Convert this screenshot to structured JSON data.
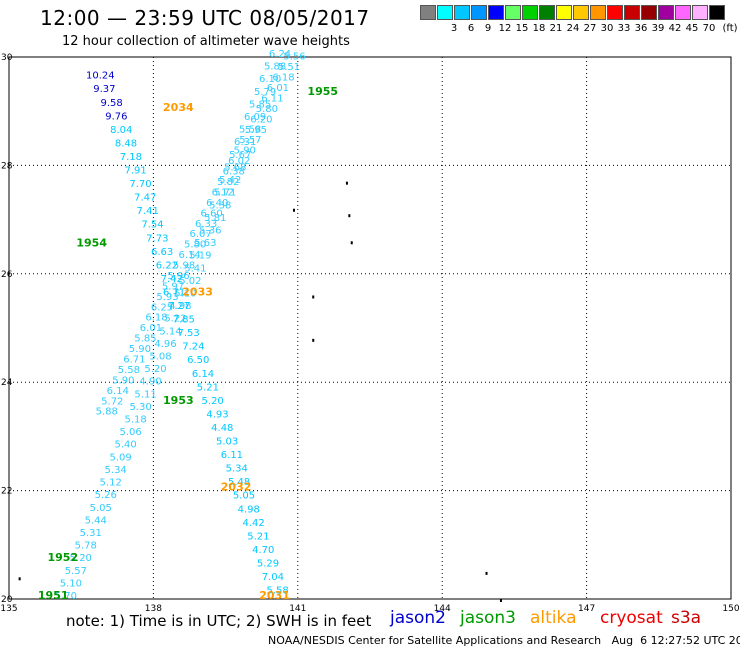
{
  "header": {
    "title": "12:00 — 23:59 UTC 08/05/2017",
    "subtitle": "12 hour collection of altimeter wave heights"
  },
  "color_scale": {
    "unit": "(ft)",
    "cells": [
      {
        "color": "#808080",
        "label": ""
      },
      {
        "color": "#00ffff",
        "label": "3"
      },
      {
        "color": "#00c8ff",
        "label": "6"
      },
      {
        "color": "#0096ff",
        "label": "9"
      },
      {
        "color": "#0000ff",
        "label": "12"
      },
      {
        "color": "#66ff66",
        "label": "15"
      },
      {
        "color": "#00d000",
        "label": "18"
      },
      {
        "color": "#008000",
        "label": "21"
      },
      {
        "color": "#ffff00",
        "label": "24"
      },
      {
        "color": "#ffc800",
        "label": "27"
      },
      {
        "color": "#ff9600",
        "label": "30"
      },
      {
        "color": "#ff0000",
        "label": "33"
      },
      {
        "color": "#c80000",
        "label": "36"
      },
      {
        "color": "#960000",
        "label": "39"
      },
      {
        "color": "#a000a0",
        "label": "42"
      },
      {
        "color": "#ff66ff",
        "label": "45"
      },
      {
        "color": "#ffb0ff",
        "label": "70"
      },
      {
        "color": "#000000",
        "label": ""
      }
    ]
  },
  "axes": {
    "lon_ticks": [
      "135",
      "138",
      "141",
      "144",
      "147",
      "150"
    ],
    "lat_ticks": [
      "30",
      "28",
      "26",
      "24",
      "22",
      "20"
    ]
  },
  "footer": {
    "note": "note: 1) Time is in UTC; 2) SWH is in feet",
    "satellites": [
      {
        "name": "jason2",
        "color": "#0000cc"
      },
      {
        "name": "jason3",
        "color": "#009900"
      },
      {
        "name": "altika",
        "color": "#ff9900"
      },
      {
        "name": "cryosat",
        "color": "#ee0000"
      },
      {
        "name": "s3a",
        "color": "#cc0000"
      }
    ],
    "credit": "NOAA/NESDIS Center for Satellite Applications and Research   Aug  6 12:27:52 UTC 2017"
  },
  "chart_data": {
    "type": "scatter",
    "xlim": [
      135,
      150
    ],
    "ylim": [
      20,
      30
    ],
    "time_labels": [
      {
        "text": "1955",
        "lon": 141.2,
        "lat": 29.3,
        "color": "#009900"
      },
      {
        "text": "1954",
        "lon": 136.4,
        "lat": 26.5,
        "color": "#009900"
      },
      {
        "text": "1953",
        "lon": 138.2,
        "lat": 23.6,
        "color": "#009900"
      },
      {
        "text": "1952",
        "lon": 135.8,
        "lat": 20.7,
        "color": "#009900"
      },
      {
        "text": "1951",
        "lon": 135.6,
        "lat": 20.0,
        "color": "#009900"
      },
      {
        "text": "2034",
        "lon": 138.2,
        "lat": 29.0,
        "color": "#ff9900"
      },
      {
        "text": "2033",
        "lon": 138.6,
        "lat": 25.6,
        "color": "#ff9900"
      },
      {
        "text": "2032",
        "lon": 139.4,
        "lat": 22.0,
        "color": "#ff9900"
      },
      {
        "text": "2031",
        "lon": 140.2,
        "lat": 20.0,
        "color": "#ff9900"
      }
    ],
    "altika_track": {
      "color_low": "#00c8ff",
      "color_high": "#0000cc",
      "values": [
        "10.24",
        "9.37",
        "9.58",
        "9.76",
        "8.04",
        "8.48",
        "7.18",
        "7.91",
        "7.70",
        "7.47",
        "7.41",
        "7.54",
        "7.73",
        "6.63",
        "6.22",
        "7.42",
        "6.71",
        "7.27",
        "7.85",
        "7.53",
        "7.24",
        "6.50",
        "6.14",
        "5.21",
        "5.20",
        "4.93",
        "4.48",
        "5.03",
        "6.11",
        "5.34",
        "5.48",
        "5.05",
        "4.98",
        "4.42",
        "5.21",
        "4.70",
        "5.29",
        "7.04",
        "5.58"
      ],
      "lats": [
        29.6,
        29.35,
        29.1,
        28.85,
        28.6,
        28.35,
        28.1,
        27.85,
        27.6,
        27.35,
        27.1,
        26.85,
        26.6,
        26.35,
        26.1,
        25.85,
        25.6,
        25.35,
        25.1,
        24.85,
        24.6,
        24.35,
        24.1,
        23.85,
        23.6,
        23.35,
        23.1,
        22.85,
        22.6,
        22.35,
        22.1,
        21.85,
        21.6,
        21.35,
        21.1,
        20.85,
        20.6,
        20.35,
        20.1
      ],
      "lons": [
        136.6,
        136.75,
        136.9,
        137.0,
        137.1,
        137.2,
        137.3,
        137.4,
        137.5,
        137.6,
        137.65,
        137.75,
        137.85,
        137.95,
        138.05,
        138.15,
        138.2,
        138.3,
        138.4,
        138.5,
        138.6,
        138.7,
        138.8,
        138.9,
        139.0,
        139.1,
        139.2,
        139.3,
        139.4,
        139.5,
        139.55,
        139.65,
        139.75,
        139.85,
        139.95,
        140.05,
        140.15,
        140.25,
        140.35
      ]
    },
    "jason_track_a": {
      "color": "#33ccff",
      "values": [
        "5.56",
        "5.51",
        "6.18",
        "6.01",
        "6.11",
        "5.80",
        "6.20",
        "5.95",
        "5.57",
        "5.90",
        "6.02",
        "6.38",
        "5.82",
        "6.12",
        "6.40",
        "6.60",
        "6.33",
        "6.07",
        "5.80",
        "6.14",
        "5.98",
        "5.96",
        "5.97",
        "5.93",
        "6.25",
        "6.18",
        "6.01",
        "5.85",
        "5.90",
        "6.71",
        "5.58",
        "5.90",
        "6.14",
        "5.72",
        "5.88"
      ],
      "start": [
        140.7,
        29.95
      ],
      "end": [
        136.8,
        23.4
      ]
    },
    "jason_track_b": {
      "color": "#33ccff",
      "values": [
        "6.24",
        "5.88",
        "6.10",
        "5.79",
        "5.85",
        "6.09",
        "5.58",
        "6.31",
        "5.67",
        "5.68",
        "5.42",
        "5.71",
        "5.38",
        "5.81",
        "5.36",
        "5.63",
        "5.19",
        "5.41",
        "5.02",
        "5.10",
        "4.98",
        "5.22",
        "5.14",
        "4.96",
        "5.08",
        "5.20",
        "4.90",
        "5.11",
        "5.30",
        "5.18",
        "5.06",
        "5.40",
        "5.09",
        "5.34",
        "5.12",
        "5.26",
        "5.05",
        "5.44",
        "5.31",
        "5.78",
        "5.20",
        "5.57",
        "5.10",
        "5.70"
      ],
      "start": [
        140.4,
        30.0
      ],
      "end": [
        135.95,
        20.0
      ]
    },
    "land_marks": [
      [
        142.0,
        27.7
      ],
      [
        142.05,
        27.1
      ],
      [
        142.1,
        26.6
      ],
      [
        140.9,
        27.2
      ],
      [
        141.3,
        25.6
      ],
      [
        141.3,
        24.8
      ],
      [
        144.9,
        20.5
      ],
      [
        145.2,
        20.0
      ],
      [
        135.2,
        20.4
      ]
    ]
  }
}
